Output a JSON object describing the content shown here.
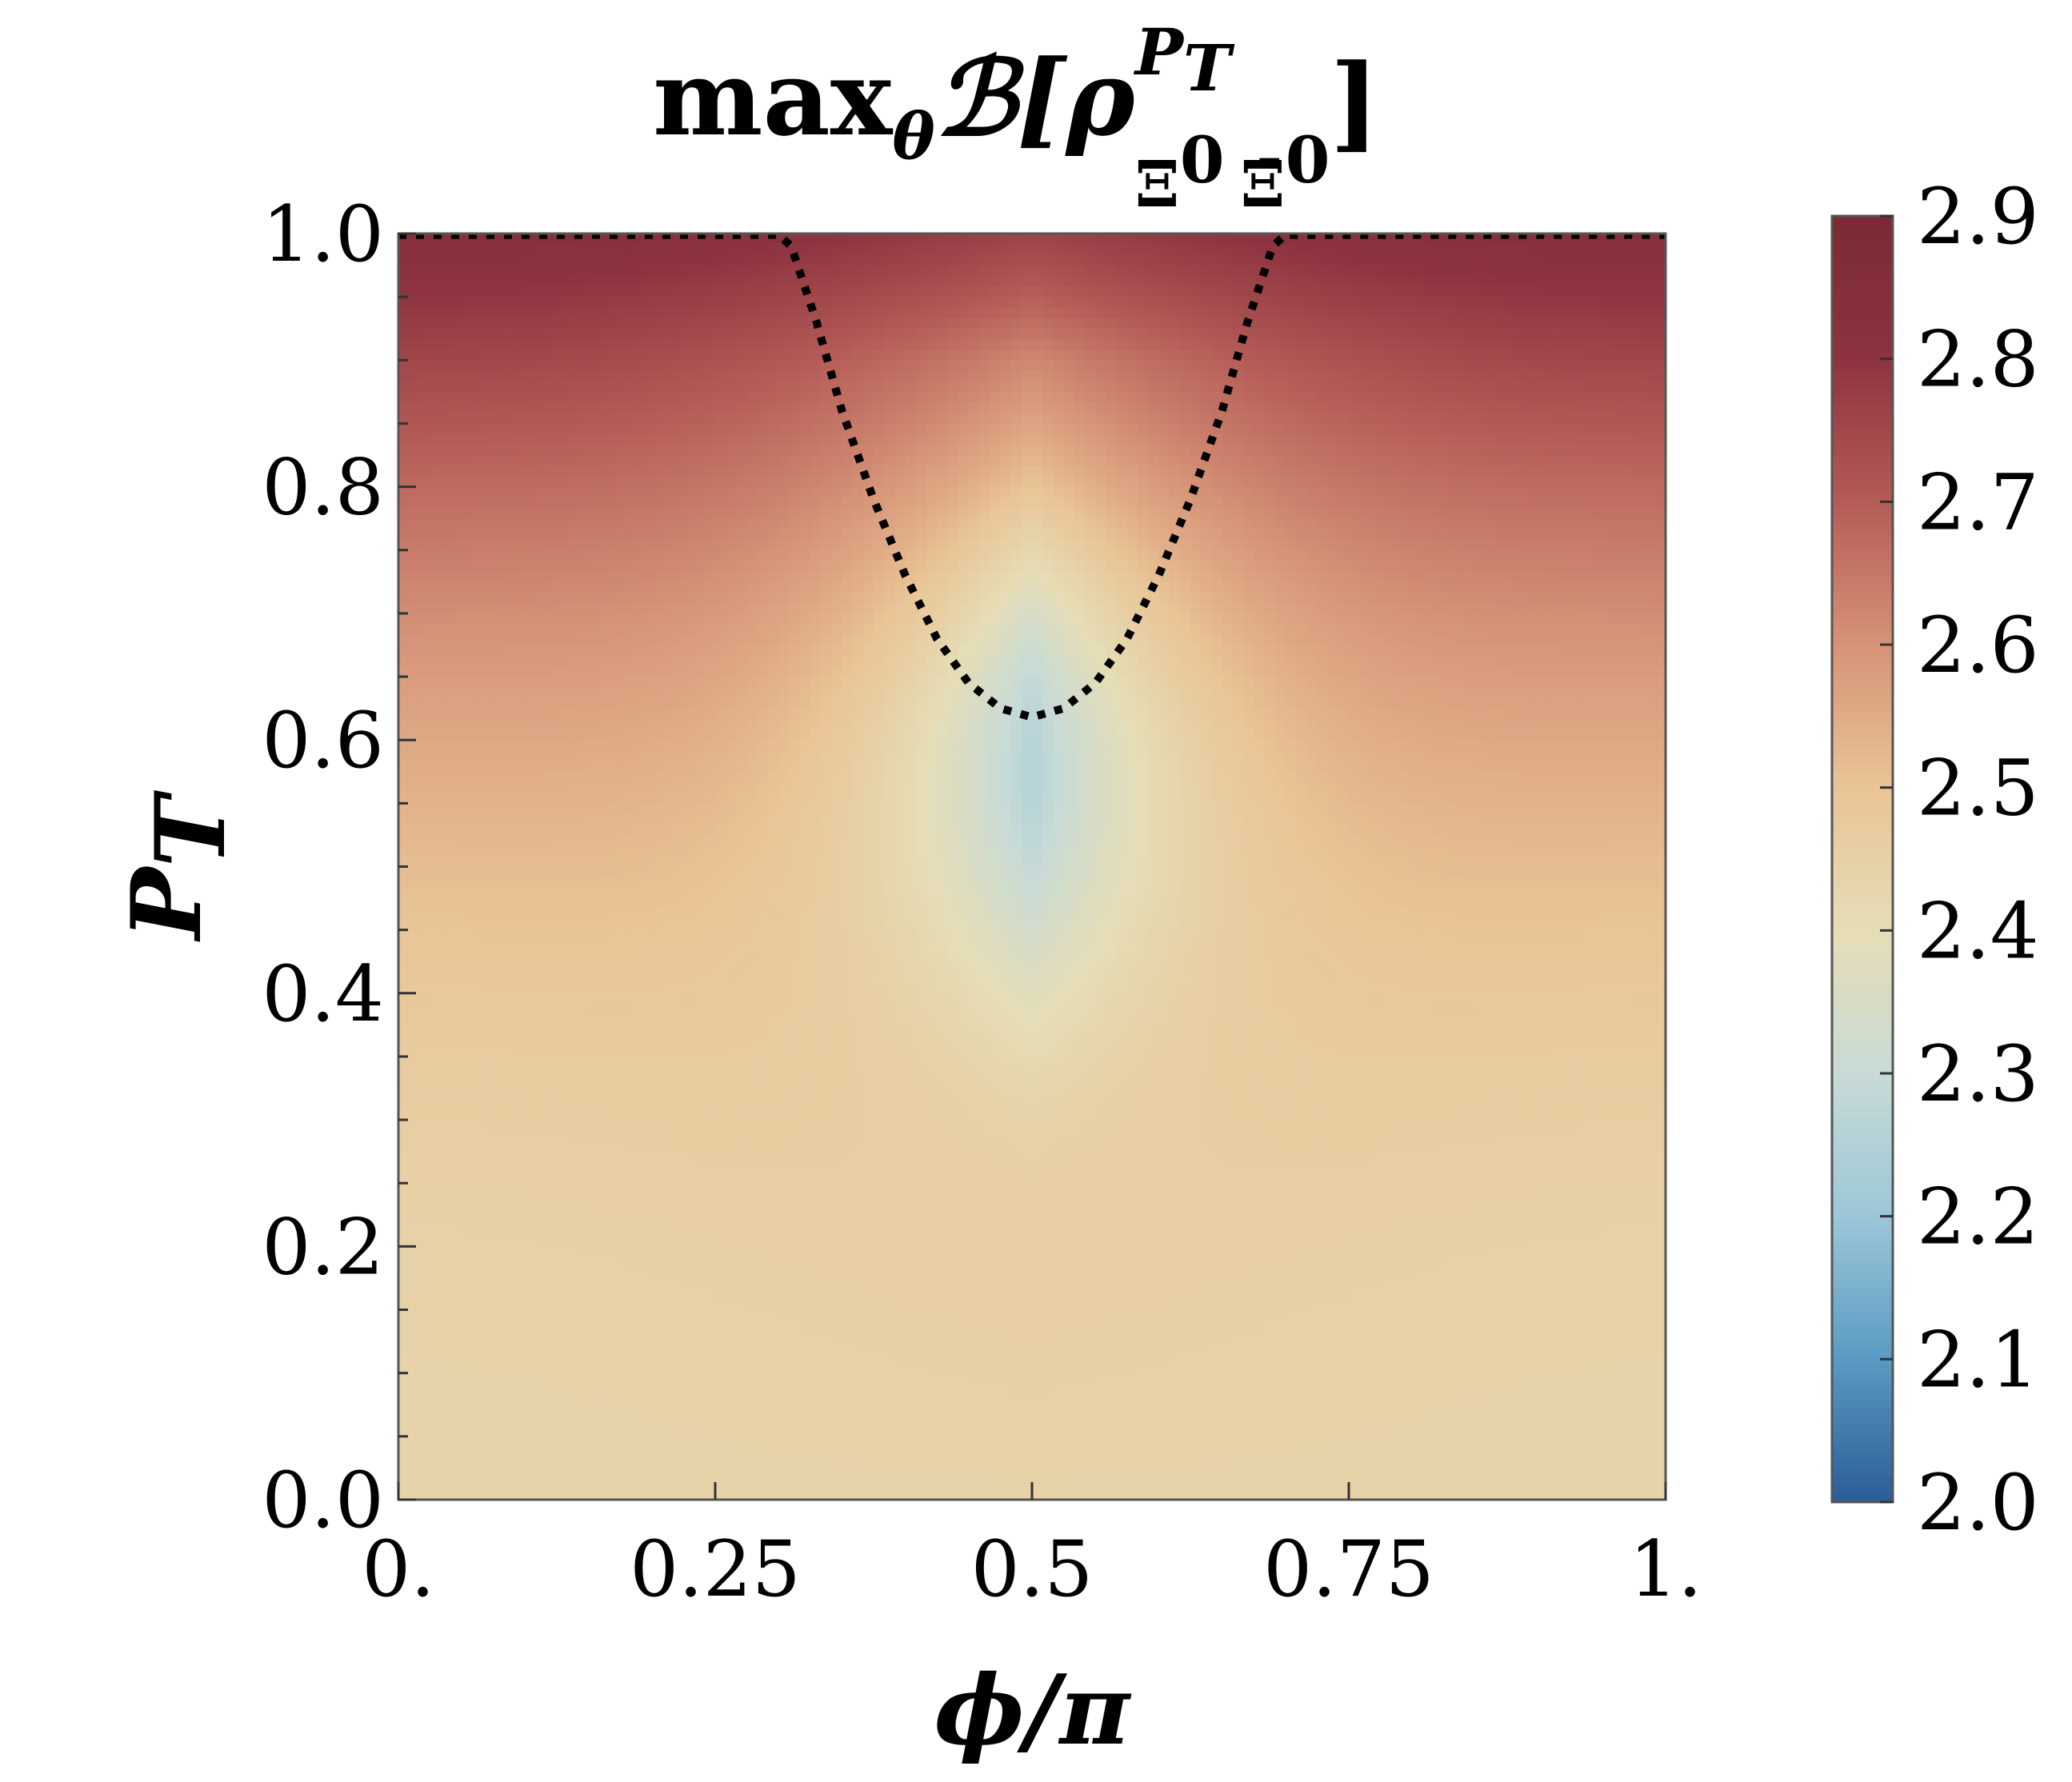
{
  "chart_data": {
    "type": "heatmap",
    "title": {
      "prefix": "max",
      "prefix_sub": "θ",
      "script": "ℬ[ρ",
      "superscript": "P",
      "superscript_sub": "T",
      "subscript": "Ξ",
      "subscript_sup": "0",
      "subscript2": "Ξ̄",
      "subscript2_sup": "0",
      "close": "]"
    },
    "xlabel": "ϕ/π",
    "ylabel": {
      "main": "P",
      "sub": "T"
    },
    "x_ticks": [
      "0.",
      "0.25",
      "0.5",
      "0.75",
      "1."
    ],
    "x_tick_values": [
      0,
      0.25,
      0.5,
      0.75,
      1
    ],
    "y_ticks": [
      "0.0",
      "0.2",
      "0.4",
      "0.6",
      "0.8",
      "1.0"
    ],
    "y_tick_values": [
      0,
      0.2,
      0.4,
      0.6,
      0.8,
      1.0
    ],
    "xlim": [
      0,
      1
    ],
    "ylim": [
      0,
      1
    ],
    "colorbar": {
      "ticks": [
        "2.0",
        "2.1",
        "2.2",
        "2.3",
        "2.4",
        "2.5",
        "2.6",
        "2.7",
        "2.8",
        "2.9"
      ],
      "tick_values": [
        2.0,
        2.1,
        2.2,
        2.3,
        2.4,
        2.5,
        2.6,
        2.7,
        2.8,
        2.9
      ],
      "range": [
        2.0,
        2.9
      ],
      "colormap": "RdYlBu_r",
      "colors": [
        "#2c5c97",
        "#5a9ac2",
        "#9cc7d9",
        "#c8dbd6",
        "#e6ddb6",
        "#e9c496",
        "#d69377",
        "#b45c57",
        "#8d3340",
        "#7a2a35"
      ]
    },
    "surface": {
      "description_points": [
        {
          "x": 0.0,
          "y": 0.0,
          "value": 2.44
        },
        {
          "x": 0.5,
          "y": 0.0,
          "value": 2.44
        },
        {
          "x": 1.0,
          "y": 0.0,
          "value": 2.44
        },
        {
          "x": 0.0,
          "y": 0.4,
          "value": 2.52
        },
        {
          "x": 0.5,
          "y": 0.4,
          "value": 2.34
        },
        {
          "x": 0.0,
          "y": 0.8,
          "value": 2.72
        },
        {
          "x": 0.5,
          "y": 0.6,
          "value": 2.22
        },
        {
          "x": 0.5,
          "y": 0.8,
          "value": 2.38
        },
        {
          "x": 0.0,
          "y": 1.0,
          "value": 2.85
        },
        {
          "x": 0.5,
          "y": 1.0,
          "value": 2.83
        }
      ]
    },
    "boundary_curve": {
      "style": "dotted",
      "color": "#000000",
      "points": [
        [
          0.0,
          0.999
        ],
        [
          0.1,
          0.999
        ],
        [
          0.2,
          0.999
        ],
        [
          0.3,
          0.999
        ],
        [
          0.31,
          0.99
        ],
        [
          0.33,
          0.93
        ],
        [
          0.35,
          0.86
        ],
        [
          0.375,
          0.79
        ],
        [
          0.4,
          0.73
        ],
        [
          0.425,
          0.68
        ],
        [
          0.45,
          0.645
        ],
        [
          0.475,
          0.625
        ],
        [
          0.5,
          0.618
        ],
        [
          0.525,
          0.625
        ],
        [
          0.55,
          0.645
        ],
        [
          0.575,
          0.68
        ],
        [
          0.6,
          0.73
        ],
        [
          0.625,
          0.79
        ],
        [
          0.65,
          0.86
        ],
        [
          0.67,
          0.93
        ],
        [
          0.69,
          0.99
        ],
        [
          0.7,
          0.999
        ],
        [
          0.8,
          0.999
        ],
        [
          0.9,
          0.999
        ],
        [
          1.0,
          0.999
        ]
      ]
    }
  }
}
